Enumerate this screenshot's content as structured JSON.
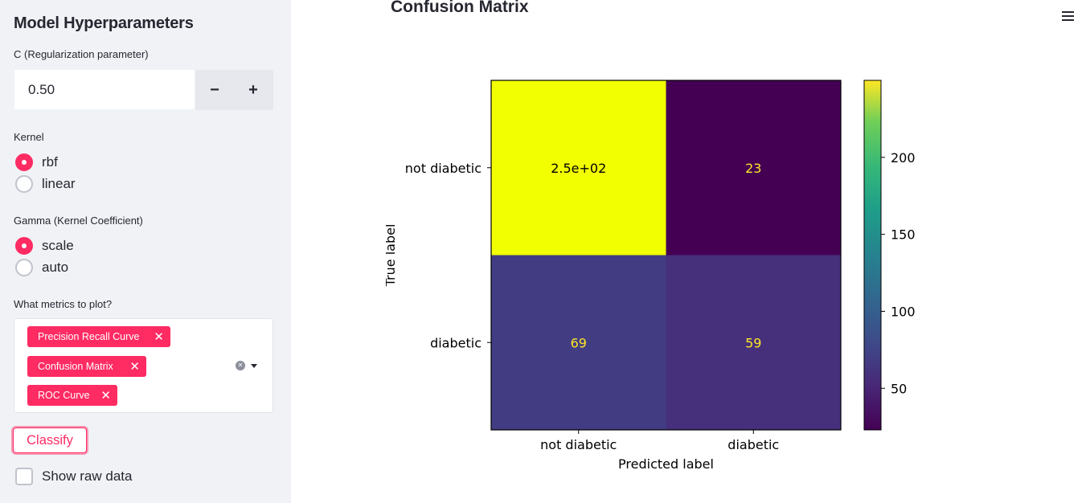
{
  "sidebar": {
    "title": "Model Hyperparameters",
    "c_param": {
      "label": "C (Regularization parameter)",
      "value": "0.50",
      "minus": "−",
      "plus": "+"
    },
    "kernel": {
      "label": "Kernel",
      "options": [
        {
          "label": "rbf",
          "selected": true
        },
        {
          "label": "linear",
          "selected": false
        }
      ]
    },
    "gamma": {
      "label": "Gamma (Kernel Coefficient)",
      "options": [
        {
          "label": "scale",
          "selected": true
        },
        {
          "label": "auto",
          "selected": false
        }
      ]
    },
    "metrics": {
      "label": "What metrics to plot?",
      "selected": [
        "Precision Recall Curve",
        "Confusion Matrix",
        "ROC Curve"
      ],
      "remove_glyph": "✕"
    },
    "classify_button": "Classify",
    "show_raw_data": {
      "label": "Show raw data",
      "checked": false
    }
  },
  "main": {
    "title": "Confusion Matrix",
    "menu_icon": "hamburger-icon"
  },
  "chart_data": {
    "type": "heatmap",
    "colormap": "viridis",
    "xlabel": "Predicted label",
    "ylabel": "True label",
    "x_categories": [
      "not diabetic",
      "diabetic"
    ],
    "y_categories": [
      "not diabetic",
      "diabetic"
    ],
    "matrix": [
      [
        250,
        23
      ],
      [
        69,
        59
      ]
    ],
    "cell_labels": [
      [
        "2.5e+02",
        "23"
      ],
      [
        "69",
        "59"
      ]
    ],
    "colorbar": {
      "ticks": [
        50,
        100,
        150,
        200
      ],
      "range": [
        23,
        250
      ]
    }
  },
  "colors": {
    "accent": "#ff2b63",
    "sidebar_bg": "#f0f2f6"
  }
}
